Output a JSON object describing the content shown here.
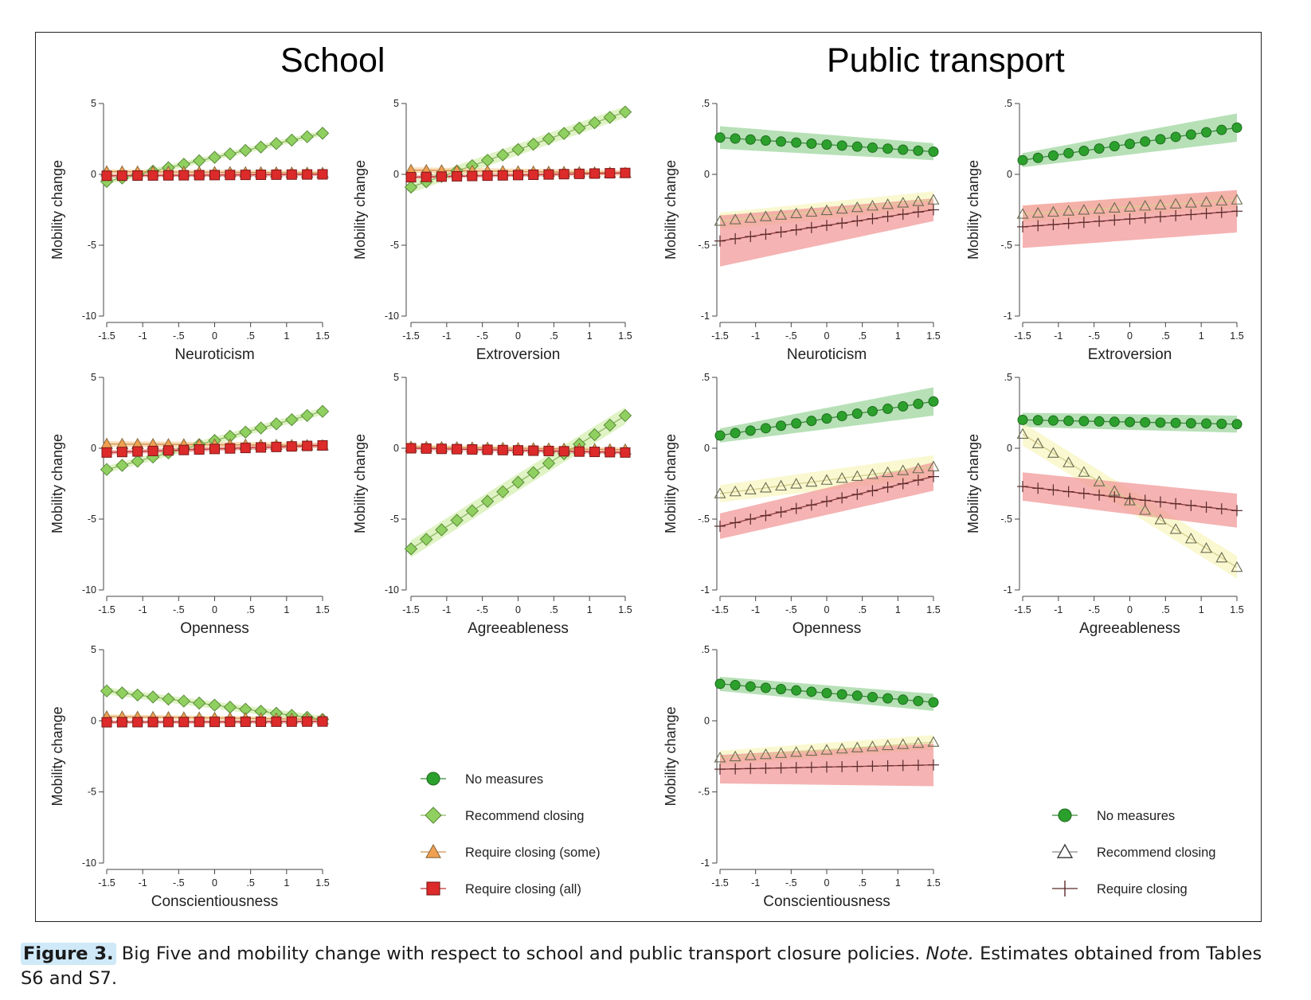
{
  "sections": {
    "school": "School",
    "transport": "Public transport"
  },
  "caption": {
    "label": "Figure 3.",
    "text_before_note": " Big Five and mobility change with respect to school and public transport closure policies. ",
    "note": "Note.",
    "text_after_note": " Estimates obtained from Tables S6 and S7."
  },
  "colors": {
    "green": "#2ca02c",
    "green_band": "#9fd69f",
    "light_green": "#90d060",
    "light_green_band": "#d4efb0",
    "orange": "#f0a050",
    "orange_band": "#f8d2a0",
    "red": "#dd2a2a",
    "red_band": "#f19a9a",
    "pale_yellow_band": "#f7f5c0",
    "outline": "#333333"
  },
  "legends": {
    "school": [
      {
        "marker": "circle",
        "color": "green",
        "label": "No measures"
      },
      {
        "marker": "diamond",
        "color": "light_green",
        "label": "Recommend closing"
      },
      {
        "marker": "triangle",
        "color": "orange",
        "label": "Require closing (some)"
      },
      {
        "marker": "square",
        "color": "red",
        "label": "Require closing (all)"
      }
    ],
    "transport": [
      {
        "marker": "circle",
        "color": "green",
        "label": "No measures"
      },
      {
        "marker": "triangle-hollow",
        "color": "pale",
        "label": "Recommend closing"
      },
      {
        "marker": "plus",
        "color": "dark",
        "label": "Require closing"
      }
    ]
  },
  "chart_data": [
    {
      "type": "line",
      "panel": "school-neuroticism",
      "xlabel": "Neuroticism",
      "ylabel": "Mobility change",
      "xlim": [
        -1.5,
        1.5
      ],
      "ylim": [
        -10,
        5
      ],
      "xticks": [
        "-1.5",
        "-1",
        "-.5",
        "0",
        ".5",
        "1",
        "1.5"
      ],
      "yticks": [
        "5",
        "0",
        "-5",
        "-10"
      ],
      "series": [
        {
          "marker": "diamond",
          "start": -0.5,
          "end": 2.9,
          "band": 0.2
        },
        {
          "marker": "triangle",
          "start": 0.2,
          "end": 0.1,
          "band": 0.15
        },
        {
          "marker": "square",
          "start": -0.1,
          "end": 0.0,
          "band": 0.12
        }
      ]
    },
    {
      "type": "line",
      "panel": "school-extroversion",
      "xlabel": "Extroversion",
      "ylabel": "Mobility change",
      "xlim": [
        -1.5,
        1.5
      ],
      "ylim": [
        -10,
        5
      ],
      "xticks": [
        "-1.5",
        "-1",
        "-.5",
        "0",
        ".5",
        "1",
        "1.5"
      ],
      "yticks": [
        "5",
        "0",
        "-5",
        "-10"
      ],
      "series": [
        {
          "marker": "diamond",
          "start": -0.9,
          "end": 4.4,
          "band": 0.4
        },
        {
          "marker": "triangle",
          "start": 0.3,
          "end": 0.1,
          "band": 0.2
        },
        {
          "marker": "square",
          "start": -0.2,
          "end": 0.1,
          "band": 0.12
        }
      ]
    },
    {
      "type": "line",
      "panel": "transport-neuroticism",
      "xlabel": "Neuroticism",
      "ylabel": "Mobility change",
      "xlim": [
        -1.5,
        1.5
      ],
      "ylim": [
        -1,
        0.5
      ],
      "xticks": [
        "-1.5",
        "-1",
        "-.5",
        "0",
        ".5",
        "1",
        "1.5"
      ],
      "yticks": [
        ".5",
        "0",
        "-.5",
        "-1"
      ],
      "series": [
        {
          "marker": "circle",
          "start": 0.26,
          "end": 0.16,
          "band_start": 0.08,
          "band_end": 0.06
        },
        {
          "marker": "triangle-hollow",
          "start": -0.33,
          "end": -0.18,
          "band_start": 0.06,
          "band_end": 0.06
        },
        {
          "marker": "plus",
          "start": -0.47,
          "end": -0.25,
          "band_start": 0.18,
          "band_end": 0.08
        }
      ]
    },
    {
      "type": "line",
      "panel": "transport-extroversion",
      "xlabel": "Extroversion",
      "ylabel": "Mobility change",
      "xlim": [
        -1.5,
        1.5
      ],
      "ylim": [
        -1,
        0.5
      ],
      "xticks": [
        "-1.5",
        "-1",
        "-.5",
        "0",
        ".5",
        "1",
        "1.5"
      ],
      "yticks": [
        ".5",
        "0",
        "-.5",
        "-1"
      ],
      "series": [
        {
          "marker": "circle",
          "start": 0.1,
          "end": 0.33,
          "band_start": 0.05,
          "band_end": 0.1
        },
        {
          "marker": "triangle-hollow",
          "start": -0.28,
          "end": -0.18,
          "band_start": 0.06,
          "band_end": 0.06
        },
        {
          "marker": "plus",
          "start": -0.37,
          "end": -0.26,
          "band_start": 0.15,
          "band_end": 0.15
        }
      ]
    },
    {
      "type": "line",
      "panel": "school-openness",
      "xlabel": "Openness",
      "ylabel": "Mobility change",
      "xlim": [
        -1.5,
        1.5
      ],
      "ylim": [
        -10,
        5
      ],
      "xticks": [
        "-1.5",
        "-1",
        "-.5",
        "0",
        ".5",
        "1",
        "1.5"
      ],
      "yticks": [
        "5",
        "0",
        "-5",
        "-10"
      ],
      "series": [
        {
          "marker": "diamond",
          "start": -1.5,
          "end": 2.6,
          "band": 0.25
        },
        {
          "marker": "triangle",
          "start": 0.3,
          "end": 0.2,
          "band": 0.2
        },
        {
          "marker": "square",
          "start": -0.3,
          "end": 0.2,
          "band": 0.15
        }
      ]
    },
    {
      "type": "line",
      "panel": "school-agreeableness",
      "xlabel": "Agreeableness",
      "ylabel": "Mobility change",
      "xlim": [
        -1.5,
        1.5
      ],
      "ylim": [
        -10,
        5
      ],
      "xticks": [
        "-1.5",
        "-1",
        "-.5",
        "0",
        ".5",
        "1",
        "1.5"
      ],
      "yticks": [
        "5",
        "0",
        "-5",
        "-10"
      ],
      "series": [
        {
          "marker": "diamond",
          "start": -7.1,
          "end": 2.3,
          "band": 0.6
        },
        {
          "marker": "triangle",
          "start": 0.1,
          "end": -0.1,
          "band": 0.15
        },
        {
          "marker": "square",
          "start": 0.0,
          "end": -0.3,
          "band": 0.12
        }
      ]
    },
    {
      "type": "line",
      "panel": "transport-openness",
      "xlabel": "Openness",
      "ylabel": "Mobility change",
      "xlim": [
        -1.5,
        1.5
      ],
      "ylim": [
        -1,
        0.5
      ],
      "xticks": [
        "-1.5",
        "-1",
        "-.5",
        "0",
        ".5",
        "1",
        "1.5"
      ],
      "yticks": [
        ".5",
        "0",
        "-.5",
        "-1"
      ],
      "series": [
        {
          "marker": "circle",
          "start": 0.09,
          "end": 0.33,
          "band_start": 0.05,
          "band_end": 0.1
        },
        {
          "marker": "triangle-hollow",
          "start": -0.32,
          "end": -0.13,
          "band_start": 0.06,
          "band_end": 0.08
        },
        {
          "marker": "plus",
          "start": -0.55,
          "end": -0.2,
          "band_start": 0.09,
          "band_end": 0.1
        }
      ]
    },
    {
      "type": "line",
      "panel": "transport-agreeableness",
      "xlabel": "Agreeableness",
      "ylabel": "Mobility change",
      "xlim": [
        -1.5,
        1.5
      ],
      "ylim": [
        -1,
        0.5
      ],
      "xticks": [
        "-1.5",
        "-1",
        "-.5",
        "0",
        ".5",
        "1",
        "1.5"
      ],
      "yticks": [
        ".5",
        "0",
        "-.5",
        "-1"
      ],
      "series": [
        {
          "marker": "circle",
          "start": 0.2,
          "end": 0.17,
          "band_start": 0.05,
          "band_end": 0.06
        },
        {
          "marker": "triangle-hollow",
          "start": 0.1,
          "end": -0.84,
          "band_start": 0.08,
          "band_end": 0.08
        },
        {
          "marker": "plus",
          "start": -0.27,
          "end": -0.44,
          "band_start": 0.1,
          "band_end": 0.12
        }
      ]
    },
    {
      "type": "line",
      "panel": "school-conscientiousness",
      "xlabel": "Conscientiousness",
      "ylabel": "Mobility change",
      "xlim": [
        -1.5,
        1.5
      ],
      "ylim": [
        -10,
        5
      ],
      "xticks": [
        "-1.5",
        "-1",
        "-.5",
        "0",
        ".5",
        "1",
        "1.5"
      ],
      "yticks": [
        "5",
        "0",
        "-5",
        "-10"
      ],
      "series": [
        {
          "marker": "diamond",
          "start": 2.1,
          "end": 0.1,
          "band": 0.25
        },
        {
          "marker": "triangle",
          "start": 0.3,
          "end": 0.1,
          "band": 0.15
        },
        {
          "marker": "square",
          "start": -0.1,
          "end": -0.05,
          "band": 0.12
        }
      ]
    },
    {
      "type": "line",
      "panel": "transport-conscientiousness",
      "xlabel": "Conscientiousness",
      "ylabel": "Mobility change",
      "xlim": [
        -1.5,
        1.5
      ],
      "ylim": [
        -1,
        0.5
      ],
      "xticks": [
        "-1.5",
        "-1",
        "-.5",
        "0",
        ".5",
        "1",
        "1.5"
      ],
      "yticks": [
        ".5",
        "0",
        "-.5",
        "-1"
      ],
      "series": [
        {
          "marker": "circle",
          "start": 0.26,
          "end": 0.13,
          "band_start": 0.05,
          "band_end": 0.06
        },
        {
          "marker": "triangle-hollow",
          "start": -0.26,
          "end": -0.15,
          "band_start": 0.05,
          "band_end": 0.05
        },
        {
          "marker": "plus",
          "start": -0.34,
          "end": -0.31,
          "band_start": 0.1,
          "band_end": 0.15
        }
      ]
    }
  ]
}
